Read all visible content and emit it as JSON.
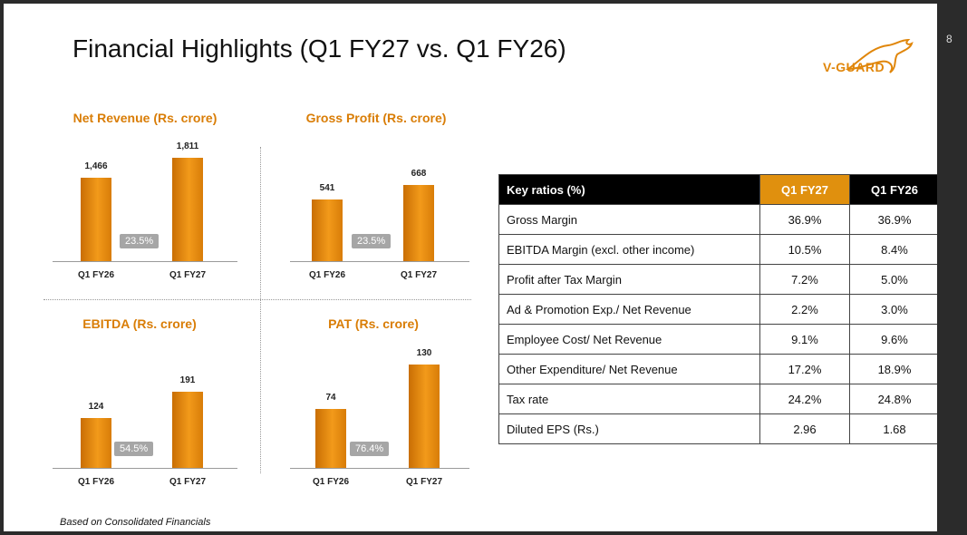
{
  "header": {
    "title": "Financial Highlights (Q1 FY27 vs. Q1 FY26)",
    "page_number": "8",
    "logo_text": "V-GUARD",
    "logo_icon": "kangaroo-icon"
  },
  "colors": {
    "accent": "#e0900e",
    "bar": "#ef9514",
    "growth_badge": "#a6a6a6"
  },
  "chart_data": [
    {
      "type": "bar",
      "title": "Net Revenue (Rs. crore)",
      "categories": [
        "Q1 FY26",
        "Q1 FY27"
      ],
      "values": [
        1466,
        1811
      ],
      "value_labels": [
        "1,466",
        "1,811"
      ],
      "growth": "23.5%"
    },
    {
      "type": "bar",
      "title": "Gross Profit (Rs. crore)",
      "categories": [
        "Q1 FY26",
        "Q1 FY27"
      ],
      "values": [
        541,
        668
      ],
      "value_labels": [
        "541",
        "668"
      ],
      "growth": "23.5%"
    },
    {
      "type": "bar",
      "title": "EBITDA (Rs. crore)",
      "categories": [
        "Q1 FY26",
        "Q1 FY27"
      ],
      "values": [
        124,
        191
      ],
      "value_labels": [
        "124",
        "191"
      ],
      "growth": "54.5%"
    },
    {
      "type": "bar",
      "title": "PAT (Rs. crore)",
      "categories": [
        "Q1 FY26",
        "Q1 FY27"
      ],
      "values": [
        74,
        130
      ],
      "value_labels": [
        "74",
        "130"
      ],
      "growth": "76.4%"
    }
  ],
  "ratios": {
    "headers": [
      "Key ratios (%)",
      "Q1 FY27",
      "Q1 FY26"
    ],
    "rows": [
      [
        "Gross Margin",
        "36.9%",
        "36.9%"
      ],
      [
        "EBITDA Margin (excl. other income)",
        "10.5%",
        "8.4%"
      ],
      [
        "Profit after Tax Margin",
        "7.2%",
        "5.0%"
      ],
      [
        "Ad & Promotion Exp./ Net Revenue",
        "2.2%",
        "3.0%"
      ],
      [
        "Employee Cost/ Net Revenue",
        "9.1%",
        "9.6%"
      ],
      [
        "Other Expenditure/ Net Revenue",
        "17.2%",
        "18.9%"
      ],
      [
        "Tax rate",
        "24.2%",
        "24.8%"
      ],
      [
        "Diluted EPS (Rs.)",
        "2.96",
        "1.68"
      ]
    ]
  },
  "footnote": "Based on Consolidated Financials"
}
